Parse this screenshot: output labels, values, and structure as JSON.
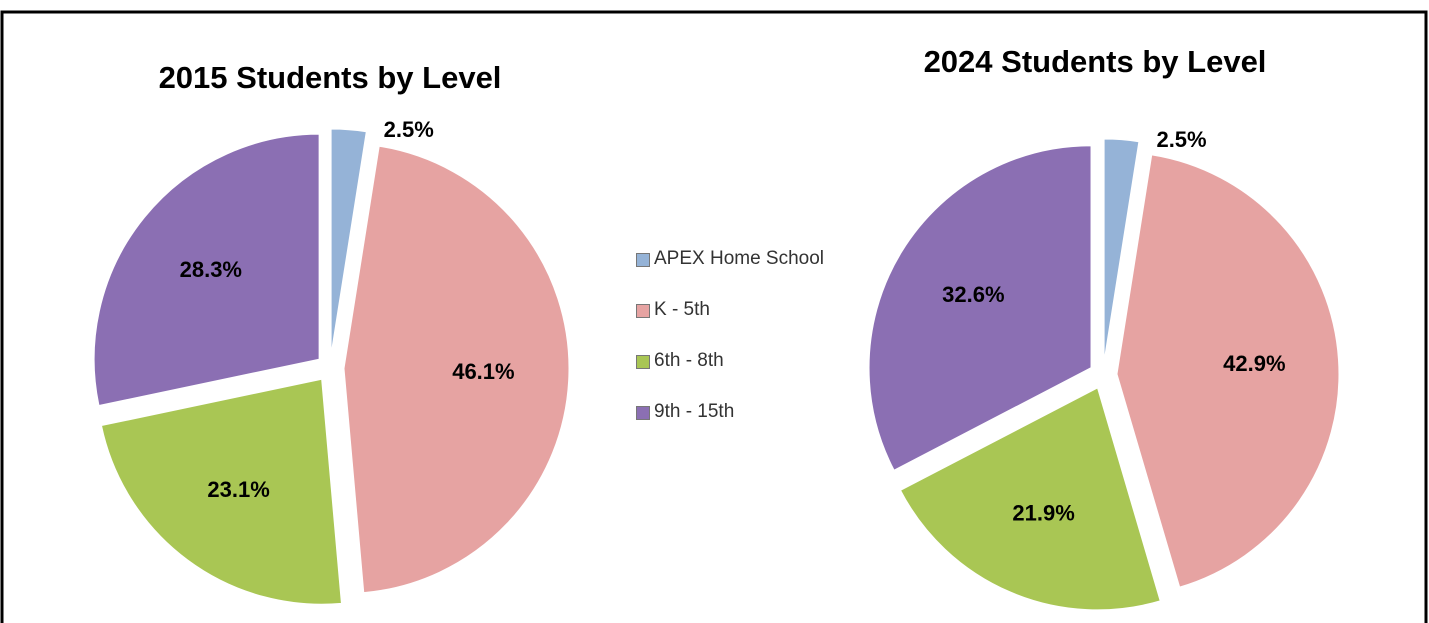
{
  "chart_data": [
    {
      "type": "pie",
      "title": "2015 Students by Level",
      "values": [
        2.5,
        46.1,
        23.1,
        28.3
      ],
      "value_labels": [
        "2.5%",
        "46.1%",
        "23.1%",
        "28.3%"
      ]
    },
    {
      "type": "pie",
      "title": "2024 Students by Level",
      "values": [
        2.5,
        42.9,
        21.9,
        32.6
      ],
      "value_labels": [
        "2.5%",
        "42.9%",
        "21.9%",
        "32.6%"
      ]
    }
  ],
  "legend": {
    "categories": [
      "APEX Home School",
      "K - 5th",
      "6th - 8th",
      "9th - 15th"
    ],
    "colors": [
      "#95b3d7",
      "#e6a3a2",
      "#a9c654",
      "#8b6fb3"
    ]
  }
}
